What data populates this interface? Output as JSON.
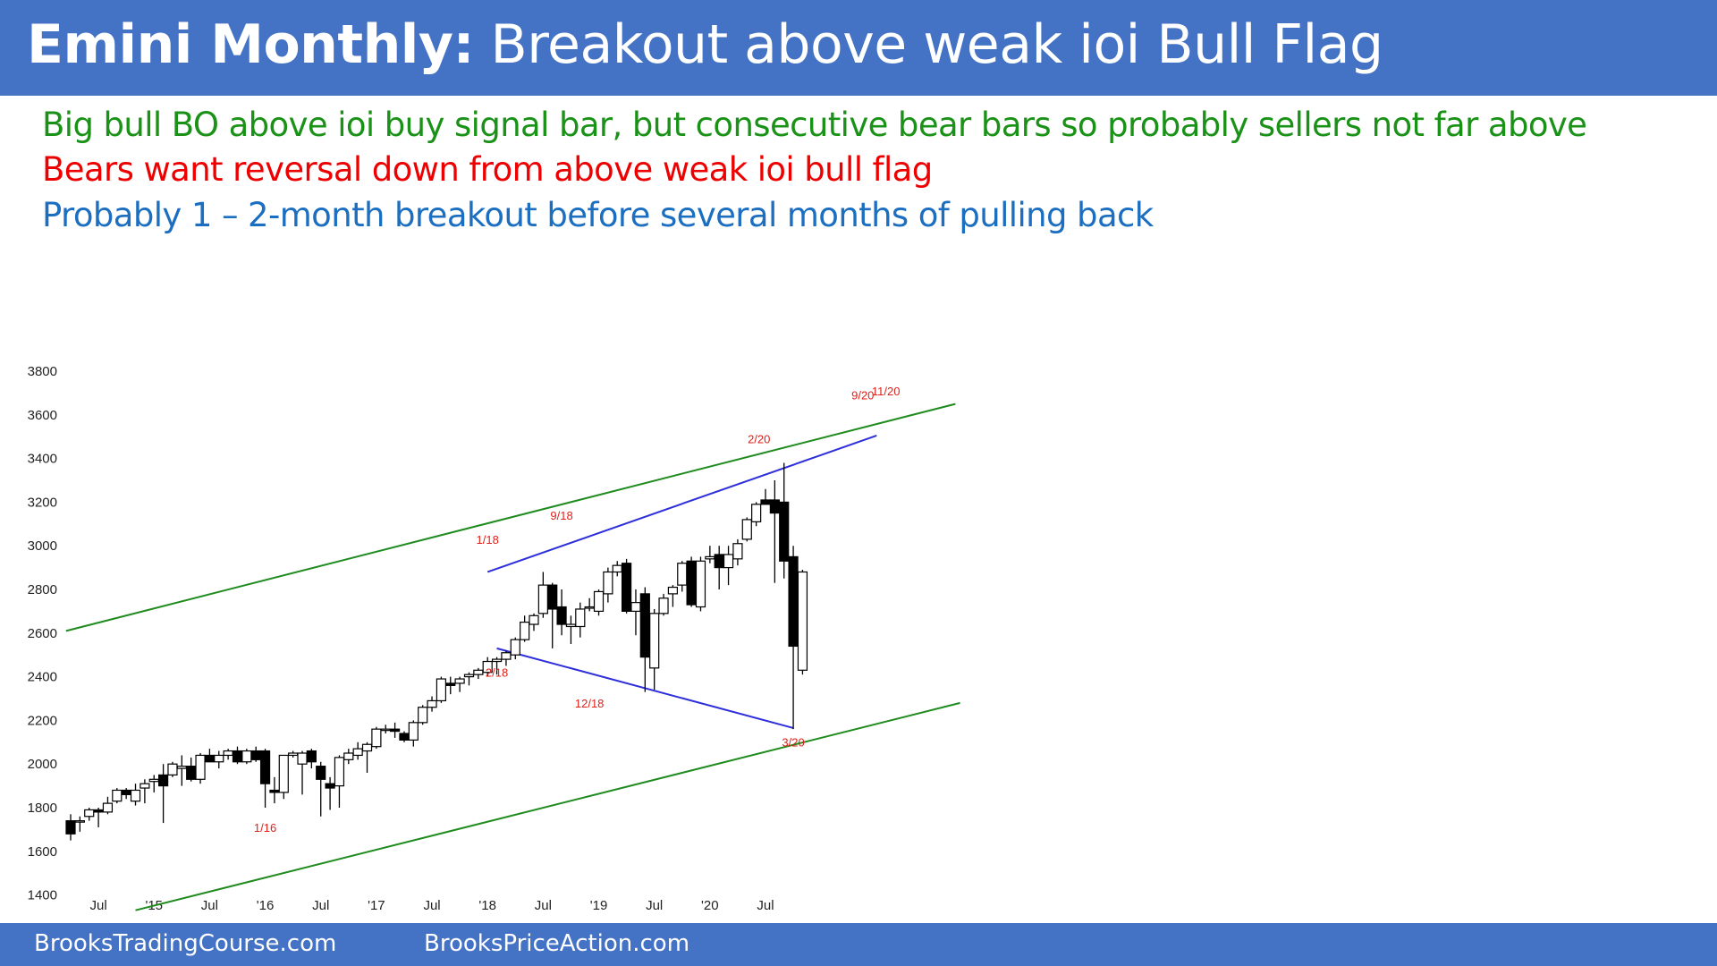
{
  "header": {
    "title_bold": "Emini Monthly:",
    "title_rest": "Breakout above weak ioi Bull Flag"
  },
  "notes": [
    {
      "text": "Big bull BO above ioi buy signal bar, but consecutive bear bars so probably sellers not far above",
      "color": "#1A9117"
    },
    {
      "text": "Bears want reversal down from above weak ioi bull flag",
      "color": "#EE0000"
    },
    {
      "text": "Probably 1 – 2-month breakout before several months of pulling back",
      "color": "#1B6EC0"
    }
  ],
  "footer": {
    "left": "BrooksTradingCourse.com",
    "right": "BrooksPriceAction.com"
  },
  "colors": {
    "header_bg": "#4472C4",
    "channel_line": "#1F8B1F",
    "triangle_line": "#2E2EDB",
    "label_red": "#E0201A"
  },
  "chart_data": {
    "type": "candlestick",
    "title": "Emini Monthly",
    "ylim": [
      1300,
      3800
    ],
    "y_ticks": [
      1400,
      1600,
      1800,
      2000,
      2200,
      2400,
      2600,
      2800,
      3000,
      3200,
      3400,
      3600,
      3800
    ],
    "x_range": [
      "2014-04",
      "2020-11"
    ],
    "x_ticks": [
      {
        "label": "Jul",
        "date": "2014-07"
      },
      {
        "label": "'15",
        "date": "2015-01"
      },
      {
        "label": "Jul",
        "date": "2015-07"
      },
      {
        "label": "'16",
        "date": "2016-01"
      },
      {
        "label": "Jul",
        "date": "2016-07"
      },
      {
        "label": "'17",
        "date": "2017-01"
      },
      {
        "label": "Jul",
        "date": "2017-07"
      },
      {
        "label": "'18",
        "date": "2018-01"
      },
      {
        "label": "Jul",
        "date": "2018-07"
      },
      {
        "label": "'19",
        "date": "2019-01"
      },
      {
        "label": "Jul",
        "date": "2019-07"
      },
      {
        "label": "'20",
        "date": "2020-01"
      },
      {
        "label": "Jul",
        "date": "2020-07"
      }
    ],
    "candles": [
      {
        "date": "2014-04",
        "open": 1740,
        "high": 1770,
        "low": 1650,
        "close": 1680
      },
      {
        "date": "2014-05",
        "open": 1740,
        "high": 1760,
        "low": 1690,
        "close": 1740
      },
      {
        "date": "2014-06",
        "open": 1760,
        "high": 1800,
        "low": 1740,
        "close": 1790
      },
      {
        "date": "2014-07",
        "open": 1790,
        "high": 1800,
        "low": 1710,
        "close": 1780
      },
      {
        "date": "2014-08",
        "open": 1780,
        "high": 1850,
        "low": 1770,
        "close": 1820
      },
      {
        "date": "2014-09",
        "open": 1830,
        "high": 1890,
        "low": 1820,
        "close": 1880
      },
      {
        "date": "2014-10",
        "open": 1880,
        "high": 1890,
        "low": 1840,
        "close": 1860
      },
      {
        "date": "2014-11",
        "open": 1830,
        "high": 1910,
        "low": 1810,
        "close": 1880
      },
      {
        "date": "2014-12",
        "open": 1890,
        "high": 1930,
        "low": 1820,
        "close": 1910
      },
      {
        "date": "2015-01",
        "open": 1920,
        "high": 1950,
        "low": 1870,
        "close": 1930
      },
      {
        "date": "2015-02",
        "open": 1950,
        "high": 2000,
        "low": 1730,
        "close": 1900
      },
      {
        "date": "2015-03",
        "open": 1950,
        "high": 2010,
        "low": 1940,
        "close": 2000
      },
      {
        "date": "2015-04",
        "open": 1980,
        "high": 2040,
        "low": 1900,
        "close": 1990
      },
      {
        "date": "2015-05",
        "open": 1990,
        "high": 2030,
        "low": 1920,
        "close": 1930
      },
      {
        "date": "2015-06",
        "open": 1930,
        "high": 2050,
        "low": 1910,
        "close": 2040
      },
      {
        "date": "2015-07",
        "open": 2040,
        "high": 2070,
        "low": 2010,
        "close": 2010
      },
      {
        "date": "2015-08",
        "open": 2010,
        "high": 2060,
        "low": 1980,
        "close": 2040
      },
      {
        "date": "2015-09",
        "open": 2040,
        "high": 2070,
        "low": 2020,
        "close": 2060
      },
      {
        "date": "2015-10",
        "open": 2060,
        "high": 2080,
        "low": 2000,
        "close": 2010
      },
      {
        "date": "2015-11",
        "open": 2010,
        "high": 2070,
        "low": 2000,
        "close": 2060
      },
      {
        "date": "2015-12",
        "open": 2060,
        "high": 2080,
        "low": 2010,
        "close": 2020
      },
      {
        "date": "2016-01",
        "open": 2060,
        "high": 2070,
        "low": 1800,
        "close": 1910
      },
      {
        "date": "2016-02",
        "open": 1880,
        "high": 1940,
        "low": 1820,
        "close": 1870
      },
      {
        "date": "2016-03",
        "open": 1870,
        "high": 2040,
        "low": 1840,
        "close": 2040
      },
      {
        "date": "2016-04",
        "open": 2040,
        "high": 2060,
        "low": 2030,
        "close": 2050
      },
      {
        "date": "2016-05",
        "open": 2000,
        "high": 2060,
        "low": 1860,
        "close": 2050
      },
      {
        "date": "2016-06",
        "open": 2060,
        "high": 2070,
        "low": 1980,
        "close": 2010
      },
      {
        "date": "2016-07",
        "open": 1990,
        "high": 2010,
        "low": 1760,
        "close": 1930
      },
      {
        "date": "2016-08",
        "open": 1910,
        "high": 1940,
        "low": 1790,
        "close": 1890
      },
      {
        "date": "2016-09",
        "open": 1900,
        "high": 2040,
        "low": 1800,
        "close": 2030
      },
      {
        "date": "2016-10",
        "open": 2020,
        "high": 2070,
        "low": 2000,
        "close": 2050
      },
      {
        "date": "2016-11",
        "open": 2040,
        "high": 2100,
        "low": 2020,
        "close": 2070
      },
      {
        "date": "2016-12",
        "open": 2060,
        "high": 2100,
        "low": 1960,
        "close": 2090
      },
      {
        "date": "2017-01",
        "open": 2080,
        "high": 2170,
        "low": 2070,
        "close": 2160
      },
      {
        "date": "2017-02",
        "open": 2160,
        "high": 2180,
        "low": 2140,
        "close": 2160
      },
      {
        "date": "2017-03",
        "open": 2160,
        "high": 2190,
        "low": 2120,
        "close": 2150
      },
      {
        "date": "2017-04",
        "open": 2140,
        "high": 2150,
        "low": 2100,
        "close": 2110
      },
      {
        "date": "2017-05",
        "open": 2110,
        "high": 2200,
        "low": 2080,
        "close": 2190
      },
      {
        "date": "2017-06",
        "open": 2190,
        "high": 2270,
        "low": 2180,
        "close": 2260
      },
      {
        "date": "2017-07",
        "open": 2260,
        "high": 2310,
        "low": 2240,
        "close": 2290
      },
      {
        "date": "2017-08",
        "open": 2290,
        "high": 2400,
        "low": 2280,
        "close": 2390
      },
      {
        "date": "2017-09",
        "open": 2370,
        "high": 2400,
        "low": 2320,
        "close": 2360
      },
      {
        "date": "2017-10",
        "open": 2370,
        "high": 2400,
        "low": 2330,
        "close": 2390
      },
      {
        "date": "2017-11",
        "open": 2400,
        "high": 2420,
        "low": 2360,
        "close": 2410
      },
      {
        "date": "2017-12",
        "open": 2410,
        "high": 2440,
        "low": 2390,
        "close": 2430
      },
      {
        "date": "2018-01",
        "open": 2420,
        "high": 2490,
        "low": 2400,
        "close": 2470
      },
      {
        "date": "2018-02",
        "open": 2470,
        "high": 2490,
        "low": 2410,
        "close": 2480
      },
      {
        "date": "2018-03",
        "open": 2480,
        "high": 2520,
        "low": 2450,
        "close": 2510
      },
      {
        "date": "2018-04",
        "open": 2500,
        "high": 2580,
        "low": 2480,
        "close": 2570
      },
      {
        "date": "2018-05",
        "open": 2570,
        "high": 2680,
        "low": 2560,
        "close": 2650
      },
      {
        "date": "2018-06",
        "open": 2640,
        "high": 2690,
        "low": 2610,
        "close": 2680
      },
      {
        "date": "2018-07",
        "open": 2690,
        "high": 2880,
        "low": 2670,
        "close": 2820
      },
      {
        "date": "2018-08",
        "open": 2820,
        "high": 2830,
        "low": 2530,
        "close": 2710
      },
      {
        "date": "2018-09",
        "open": 2720,
        "high": 2800,
        "low": 2590,
        "close": 2640
      },
      {
        "date": "2018-10",
        "open": 2630,
        "high": 2680,
        "low": 2550,
        "close": 2640
      },
      {
        "date": "2018-11",
        "open": 2630,
        "high": 2740,
        "low": 2580,
        "close": 2710
      },
      {
        "date": "2018-12",
        "open": 2720,
        "high": 2760,
        "low": 2700,
        "close": 2720
      },
      {
        "date": "2019-01",
        "open": 2700,
        "high": 2800,
        "low": 2680,
        "close": 2790
      },
      {
        "date": "2019-02",
        "open": 2780,
        "high": 2900,
        "low": 2740,
        "close": 2880
      },
      {
        "date": "2019-03",
        "open": 2880,
        "high": 2930,
        "low": 2860,
        "close": 2910
      },
      {
        "date": "2019-04",
        "open": 2920,
        "high": 2940,
        "low": 2690,
        "close": 2700
      },
      {
        "date": "2019-05",
        "open": 2700,
        "high": 2800,
        "low": 2590,
        "close": 2740
      },
      {
        "date": "2019-06",
        "open": 2780,
        "high": 2810,
        "low": 2330,
        "close": 2490
      },
      {
        "date": "2019-07",
        "open": 2440,
        "high": 2710,
        "low": 2340,
        "close": 2690
      },
      {
        "date": "2019-08",
        "open": 2690,
        "high": 2780,
        "low": 2680,
        "close": 2760
      },
      {
        "date": "2019-09",
        "open": 2780,
        "high": 2820,
        "low": 2720,
        "close": 2810
      },
      {
        "date": "2019-10",
        "open": 2820,
        "high": 2930,
        "low": 2790,
        "close": 2920
      },
      {
        "date": "2019-11",
        "open": 2930,
        "high": 2950,
        "low": 2720,
        "close": 2730
      },
      {
        "date": "2019-12",
        "open": 2720,
        "high": 2950,
        "low": 2700,
        "close": 2930
      },
      {
        "date": "2020-01",
        "open": 2940,
        "high": 3000,
        "low": 2920,
        "close": 2950
      },
      {
        "date": "2020-02",
        "open": 2960,
        "high": 3000,
        "low": 2800,
        "close": 2900
      },
      {
        "date": "2020-03",
        "open": 2900,
        "high": 3000,
        "low": 2820,
        "close": 2960
      },
      {
        "date": "2020-04",
        "open": 2940,
        "high": 3030,
        "low": 2910,
        "close": 3010
      },
      {
        "date": "2020-05",
        "open": 3030,
        "high": 3130,
        "low": 3020,
        "close": 3120
      },
      {
        "date": "2020-06",
        "open": 3110,
        "high": 3200,
        "low": 3090,
        "close": 3190
      },
      {
        "date": "2020-07",
        "open": 3210,
        "high": 3260,
        "low": 3190,
        "close": 3190
      },
      {
        "date": "2020-08",
        "open": 3210,
        "high": 3300,
        "low": 2830,
        "close": 3150
      },
      {
        "date": "2020-09",
        "open": 3200,
        "high": 3380,
        "low": 2850,
        "close": 2930
      },
      {
        "date": "2020-10",
        "open": 2950,
        "high": 3000,
        "low": 2160,
        "close": 2540
      },
      {
        "date": "2020-11",
        "open": 2430,
        "high": 2890,
        "low": 2410,
        "close": 2880
      }
    ],
    "lines": [
      {
        "name": "upper channel",
        "color": "#1F8B1F",
        "from": {
          "i": -0.5,
          "y": 2610
        },
        "to": {
          "i": 95.5,
          "y": 3650
        }
      },
      {
        "name": "lower channel",
        "color": "#1F8B1F",
        "from": {
          "i": 7,
          "y": 1330
        },
        "to": {
          "i": 96,
          "y": 2280
        }
      },
      {
        "name": "triangle upper",
        "color": "#2E2EDB",
        "from": {
          "i": 45,
          "y": 2880
        },
        "to": {
          "i": 87,
          "y": 3505
        }
      },
      {
        "name": "triangle lower",
        "color": "#2E2EDB",
        "from": {
          "i": 46,
          "y": 2530
        },
        "to": {
          "i": 78,
          "y": 2165
        }
      }
    ],
    "annotations": [
      {
        "text": "1/16",
        "i": 21,
        "y": 1690
      },
      {
        "text": "1/18",
        "i": 45,
        "y": 3010
      },
      {
        "text": "2/18",
        "i": 46,
        "y": 2400
      },
      {
        "text": "9/18",
        "i": 53,
        "y": 3120
      },
      {
        "text": "12/18",
        "i": 56,
        "y": 2260
      },
      {
        "text": "2/20",
        "i": 74.3,
        "y": 3470
      },
      {
        "text": "3/20",
        "i": 78,
        "y": 2080
      },
      {
        "text": "9/20",
        "i": 85.5,
        "y": 3670
      },
      {
        "text": "11/20",
        "i": 88,
        "y": 3690
      }
    ]
  }
}
